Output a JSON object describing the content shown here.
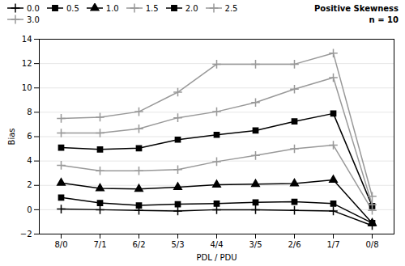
{
  "chart_data": {
    "type": "line",
    "categories": [
      "8/0",
      "7/1",
      "6/2",
      "5/3",
      "4/4",
      "3/5",
      "2/6",
      "1/7",
      "0/8"
    ],
    "series": [
      {
        "name": "0.0",
        "color": "#000000",
        "marker": "plus",
        "values": [
          0.05,
          0.0,
          -0.05,
          -0.1,
          0.0,
          0.0,
          -0.05,
          -0.1,
          -1.3
        ]
      },
      {
        "name": "0.5",
        "color": "#000000",
        "marker": "square",
        "values": [
          1.0,
          0.55,
          0.35,
          0.45,
          0.5,
          0.6,
          0.65,
          0.5,
          -1.1
        ]
      },
      {
        "name": "1.0",
        "color": "#000000",
        "marker": "triangle",
        "values": [
          2.2,
          1.75,
          1.7,
          1.85,
          2.05,
          2.1,
          2.15,
          2.45,
          -1.1
        ]
      },
      {
        "name": "1.5",
        "color": "#999999",
        "marker": "plus",
        "values": [
          3.65,
          3.2,
          3.2,
          3.3,
          3.95,
          4.45,
          5.0,
          5.3,
          -0.05
        ]
      },
      {
        "name": "2.0",
        "color": "#000000",
        "marker": "square",
        "values": [
          5.1,
          4.95,
          5.05,
          5.75,
          6.15,
          6.5,
          7.25,
          7.9,
          0.3
        ]
      },
      {
        "name": "2.5",
        "color": "#999999",
        "marker": "plus",
        "values": [
          6.3,
          6.3,
          6.65,
          7.55,
          8.05,
          8.8,
          9.9,
          10.85,
          0.4
        ]
      },
      {
        "name": "3.0",
        "color": "#999999",
        "marker": "plus",
        "values": [
          7.5,
          7.6,
          8.05,
          9.65,
          11.95,
          11.95,
          11.95,
          12.85,
          1.1
        ]
      }
    ],
    "xlabel": "PDL / PDU",
    "ylabel": "Bias",
    "ylim": [
      -2,
      14
    ],
    "yticks": [
      -2,
      0,
      2,
      4,
      6,
      8,
      10,
      12,
      14
    ],
    "annotations": [
      "Positive Skewness",
      "n = 10"
    ],
    "grid": true,
    "legend": "top-left"
  }
}
